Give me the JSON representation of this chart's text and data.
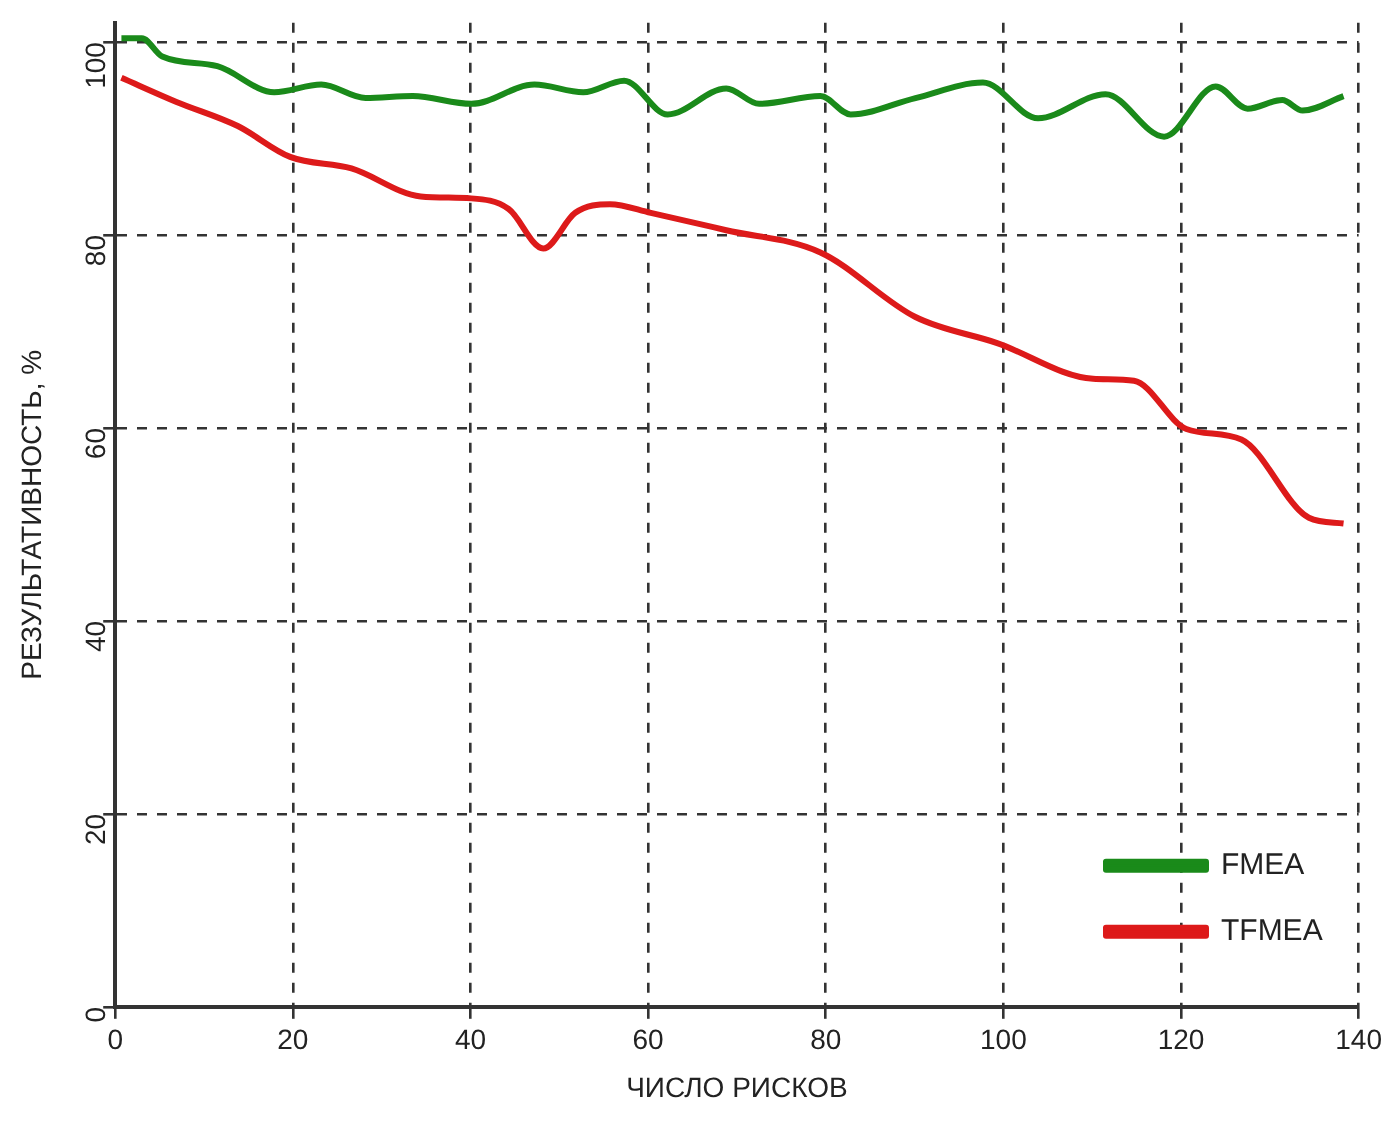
{
  "chart_data": {
    "type": "line",
    "xlabel": "ЧИСЛО РИСКОВ",
    "ylabel": "РЕЗУЛЬТАТИВНОСТЬ, %",
    "xlim": [
      0,
      140
    ],
    "xticks": [
      0,
      20,
      40,
      60,
      80,
      100,
      120,
      140
    ],
    "ylim": [
      0,
      102
    ],
    "yticks": [
      0,
      20,
      40,
      60,
      80,
      100
    ],
    "grid": true,
    "legend": "bottom right",
    "marker": "none",
    "line_style": "solid",
    "series": [
      {
        "name": "FMEA",
        "color": "#1a8a1a",
        "x": [
          0.7,
          3,
          5.3,
          11.5,
          17.9,
          23.2,
          28.2,
          33.5,
          40.1,
          47.2,
          52.7,
          57.3,
          62.2,
          68.8,
          72.5,
          79.4,
          82.8,
          90.1,
          97.7,
          103.9,
          111.5,
          118.1,
          123.9,
          127.5,
          131.4,
          133.7,
          138.3
        ],
        "values": [
          100.4,
          100.4,
          98.5,
          97.5,
          94.8,
          95.6,
          94.2,
          94.4,
          93.6,
          95.6,
          94.8,
          96,
          92.5,
          95.2,
          93.6,
          94.4,
          92.5,
          94.2,
          95.8,
          92.1,
          94.6,
          90.2,
          95.4,
          93.1,
          94,
          92.9,
          94.4
        ]
      },
      {
        "name": "TFMEA",
        "color": "#dd1a1a",
        "x": [
          0.7,
          6.9,
          13.8,
          19.7,
          26.6,
          34.4,
          40.1,
          44.3,
          48.2,
          51.8,
          55.7,
          60.3,
          68.8,
          79.4,
          90.1,
          99.3,
          110.1,
          114.7,
          120.6,
          126.8,
          134.4,
          138.3
        ],
        "values": [
          96.3,
          93.8,
          91.3,
          88.1,
          86.9,
          84,
          83.8,
          82.7,
          78.6,
          82.3,
          83.2,
          82.3,
          80.5,
          78.2,
          71.5,
          68.8,
          65.1,
          64.9,
          59.9,
          58.8,
          50.7,
          50.1
        ]
      }
    ]
  }
}
